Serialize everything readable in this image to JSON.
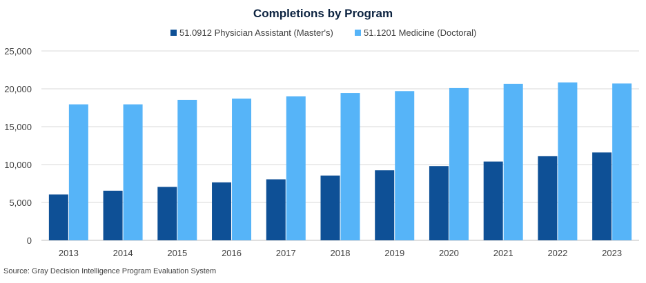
{
  "source_note": "Source: Gray Decision Intelligence Program Evaluation System",
  "colors": {
    "series_1": "#0e5096",
    "series_2": "#56b4f8",
    "title": "#0c2340",
    "text": "#404040",
    "grid": "#d9d9d9"
  },
  "chart_data": {
    "type": "bar",
    "title": "Completions by Program",
    "xlabel": "",
    "ylabel": "",
    "ylim": [
      0,
      25000
    ],
    "yticks": [
      0,
      5000,
      10000,
      15000,
      20000,
      25000
    ],
    "ytick_labels": [
      "0",
      "5,000",
      "10,000",
      "15,000",
      "20,000",
      "25,000"
    ],
    "grid": true,
    "legend_position": "top-center",
    "categories": [
      "2013",
      "2014",
      "2015",
      "2016",
      "2017",
      "2018",
      "2019",
      "2020",
      "2021",
      "2022",
      "2023"
    ],
    "series": [
      {
        "name": "51.0912 Physician Assistant (Master's)",
        "color": "#0e5096",
        "values": [
          6050,
          6550,
          7050,
          7650,
          8050,
          8550,
          9250,
          9800,
          10400,
          11100,
          11600
        ]
      },
      {
        "name": "51.1201 Medicine (Doctoral)",
        "color": "#56b4f8",
        "values": [
          17950,
          17950,
          18550,
          18700,
          19000,
          19450,
          19700,
          20100,
          20650,
          20850,
          20700
        ]
      }
    ]
  }
}
